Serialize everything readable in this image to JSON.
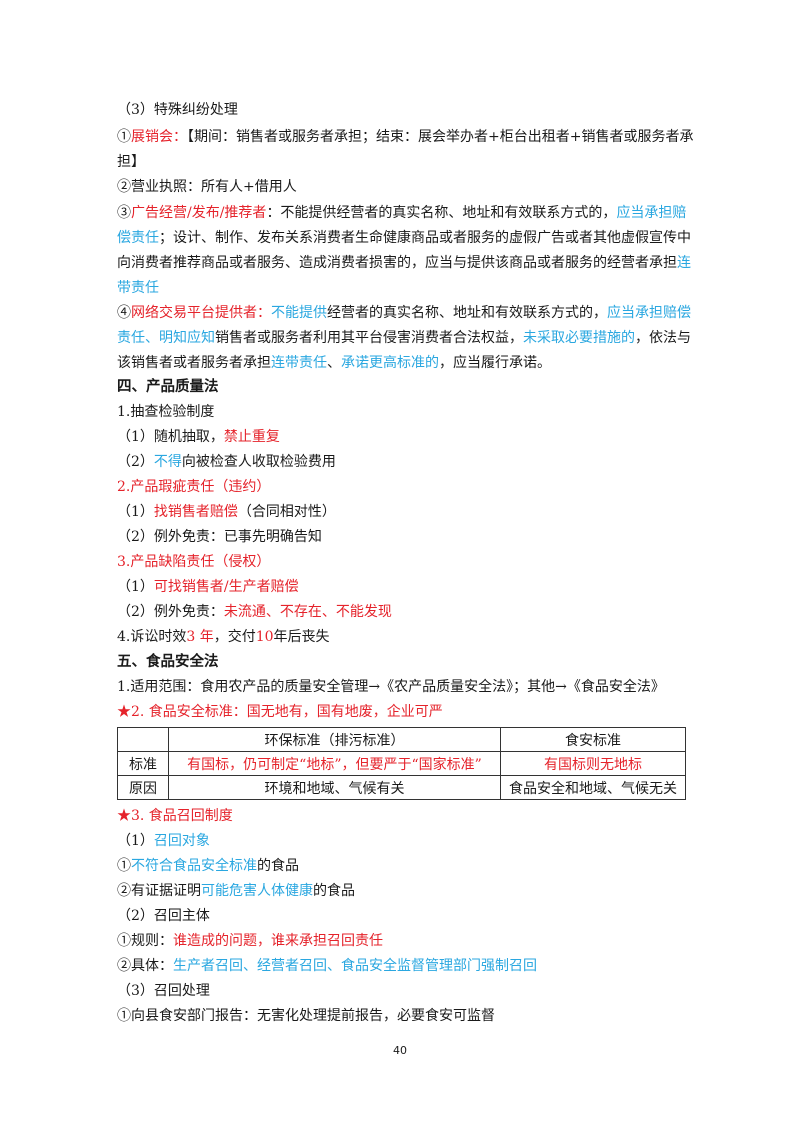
{
  "lines": {
    "l1": "（3）特殊纠纷处理",
    "l2a": "①",
    "l2b": "展销会：",
    "l2c": "【期间：销售者或服务者承担；结束：展会举办者+柜台出租者+销售者或服务者承担】",
    "l3": "②营业执照：所有人+借用人",
    "l4a": "③",
    "l4b": "广告经营/发布/推荐者",
    "l4c": "：不能提供经营者的真实名称、地址和有效联系方式的，",
    "l4d": "应当承担赔偿责任",
    "l4e": "；设计、制作、发布关系消费者生命健康商品或者服务的虚假广告或者其他虚假宣传中向消费者推荐商品或者服务、造成消费者损害的，应当与提供该商品或者服务的经营者承担",
    "l4f": "连带责任",
    "l5a": "④",
    "l5b": "网络交易平台提供者",
    "l5c": "：",
    "l5d": "不能提供",
    "l5e": "经营者的真实名称、地址和有效联系方式的，",
    "l5f": "应当承担赔偿责任",
    "l5g": "、",
    "l5h": "明知应知",
    "l5i": "销售者或服务者利用其平台侵害消费者合法权益，",
    "l5j": "未采取必要措施的",
    "l5k": "，依法与该销售者或者服务者承担",
    "l5l": "连带责任",
    "l5m": "、",
    "l5n": "承诺更高标准的",
    "l5o": "，应当履行承诺。",
    "h4": "四、产品质量法",
    "p1": "1.抽查检验制度",
    "p2a": "（1）随机抽取，",
    "p2b": "禁止重复",
    "p3a": "（2）",
    "p3b": "不得",
    "p3c": "向被检查人收取检验费用",
    "p4": "2.产品瑕疵责任（违约）",
    "p5a": "（1）",
    "p5b": "找销售者赔偿",
    "p5c": "（合同相对性）",
    "p6": "（2）例外免责：已事先明确告知",
    "p7": "3.产品缺陷责任（侵权）",
    "p8a": "（1）",
    "p8b": "可找销售者/生产者赔偿",
    "p9a": "（2）例外免责：",
    "p9b": "未流通、不存在、不能发现",
    "p10a": "4.诉讼时效",
    "p10b": "3 年",
    "p10c": "，交付",
    "p10d": "10",
    "p10e": "年后丧失",
    "h5": "五、食品安全法",
    "f1": "1.适用范围：食用农产品的质量安全管理→《农产品质量安全法》；其他→《食品安全法》",
    "f2": "★2. 食品安全标准：国无地有，国有地废，企业可严",
    "f3": "★3. 食品召回制度",
    "f4a": "（1）",
    "f4b": "召回对象",
    "f5a": "①",
    "f5b": "不符合食品安全标准",
    "f5c": "的食品",
    "f6a": "②有证据证明",
    "f6b": "可能危害人体健康",
    "f6c": "的食品",
    "f7": "（2）召回主体",
    "f8a": "①规则：",
    "f8b": "谁造成的问题，谁来承担召回责任",
    "f9a": "②具体：",
    "f9b": "生产者召回、经营者召回、食品安全监督管理部门强制召回",
    "f10": "（3）召回处理",
    "f11": "①向县食安部门报告：无害化处理提前报告，必要食安可监督"
  },
  "table": {
    "h_blank": "",
    "h_env": "环保标准（排污标准）",
    "h_food": "食安标准",
    "r1_label": "标准",
    "r1_env": "有国标，仍可制定“地标”，但要严于“国家标准”",
    "r1_food": "有国标则无地标",
    "r2_label": "原因",
    "r2_env": "环境和地域、气候有关",
    "r2_food": "食品安全和地域、气候无关"
  },
  "page_number": "40",
  "colors": {
    "red": "#e5232b",
    "blue": "#2aa7e0",
    "text": "#1a1a1a"
  }
}
